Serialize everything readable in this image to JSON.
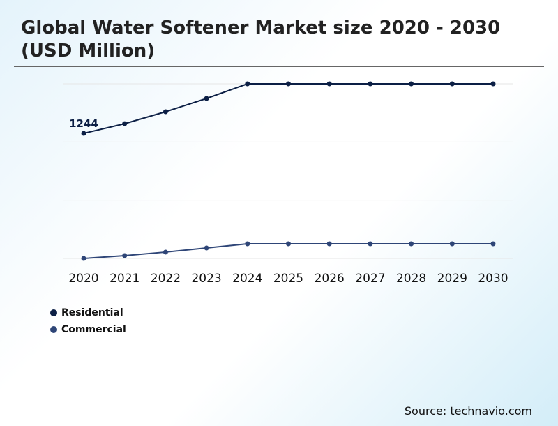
{
  "chart_data": {
    "type": "line",
    "title": "Global Water Softener Market size 2020 - 2030 (USD Million)",
    "categories": [
      "2020",
      "2021",
      "2022",
      "2023",
      "2024",
      "2025",
      "2026",
      "2027",
      "2028",
      "2029",
      "2030"
    ],
    "series": [
      {
        "name": "Residential",
        "color": "#0c1f45",
        "values": [
          1244,
          1341,
          1460,
          1592,
          1738,
          1738,
          1738,
          1738,
          1738,
          1738,
          1738
        ]
      },
      {
        "name": "Commercial",
        "color": "#2e4577",
        "values": [
          0,
          28,
          63,
          104,
          146,
          146,
          146,
          146,
          146,
          146,
          146
        ]
      }
    ],
    "data_labels": [
      {
        "series": "Residential",
        "category": "2020",
        "text": "1244"
      }
    ],
    "ylim": [
      0,
      1738
    ],
    "grid": true,
    "y_tick_labels_shown": false,
    "legend": "bottom-left"
  },
  "source": "Source: technavio.com"
}
